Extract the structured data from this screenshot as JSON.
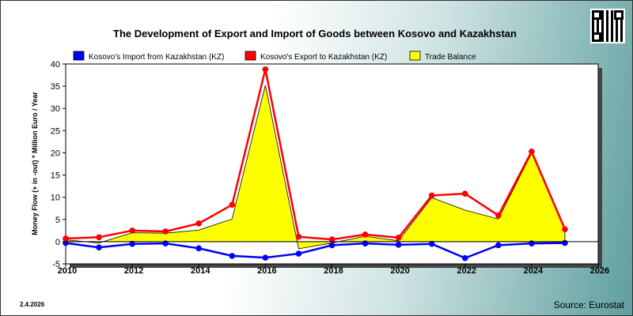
{
  "chart_data": {
    "type": "line",
    "title": "The Development of Export and Import of Goods between Kosovo and Kazakhstan",
    "ylabel": "Money Flow (+ in -out) * Million Euro / Year",
    "xlabel": "",
    "x": [
      2010,
      2011,
      2012,
      2013,
      2014,
      2015,
      2016,
      2017,
      2018,
      2019,
      2020,
      2021,
      2022,
      2023,
      2024,
      2025
    ],
    "series": [
      {
        "name": "Kosovo's Import from Kazakhstan (KZ)",
        "color": "#0000ff",
        "values": [
          -0.3,
          -1.3,
          -0.5,
          -0.4,
          -1.5,
          -3.2,
          -3.6,
          -2.7,
          -0.8,
          -0.4,
          -0.7,
          -0.5,
          -3.7,
          -0.8,
          -0.4,
          -0.3
        ]
      },
      {
        "name": "Kosovo's Export to Kazakhstan (KZ)",
        "color": "#ff0000",
        "values": [
          0.7,
          1.0,
          2.5,
          2.3,
          4.1,
          8.3,
          38.8,
          1.1,
          0.5,
          1.6,
          0.9,
          10.4,
          10.8,
          5.9,
          20.3,
          2.8
        ]
      },
      {
        "name": "Trade Balance",
        "color": "#ffff00",
        "values": [
          0.4,
          -0.3,
          2.0,
          1.9,
          2.6,
          5.1,
          35.2,
          -1.6,
          -0.3,
          1.2,
          0.2,
          9.9,
          7.1,
          5.1,
          19.9,
          2.5
        ]
      }
    ],
    "xlim": [
      2010,
      2026
    ],
    "ylim": [
      -5,
      40
    ],
    "xticks": [
      2010,
      2012,
      2014,
      2016,
      2018,
      2020,
      2022,
      2024,
      2026
    ],
    "yticks": [
      -5,
      0,
      5,
      10,
      15,
      20,
      25,
      30,
      35,
      40
    ],
    "grid": false,
    "legend_position": "top"
  },
  "footer": {
    "date": "2.4.2026",
    "source": "Source: Eurostat"
  }
}
